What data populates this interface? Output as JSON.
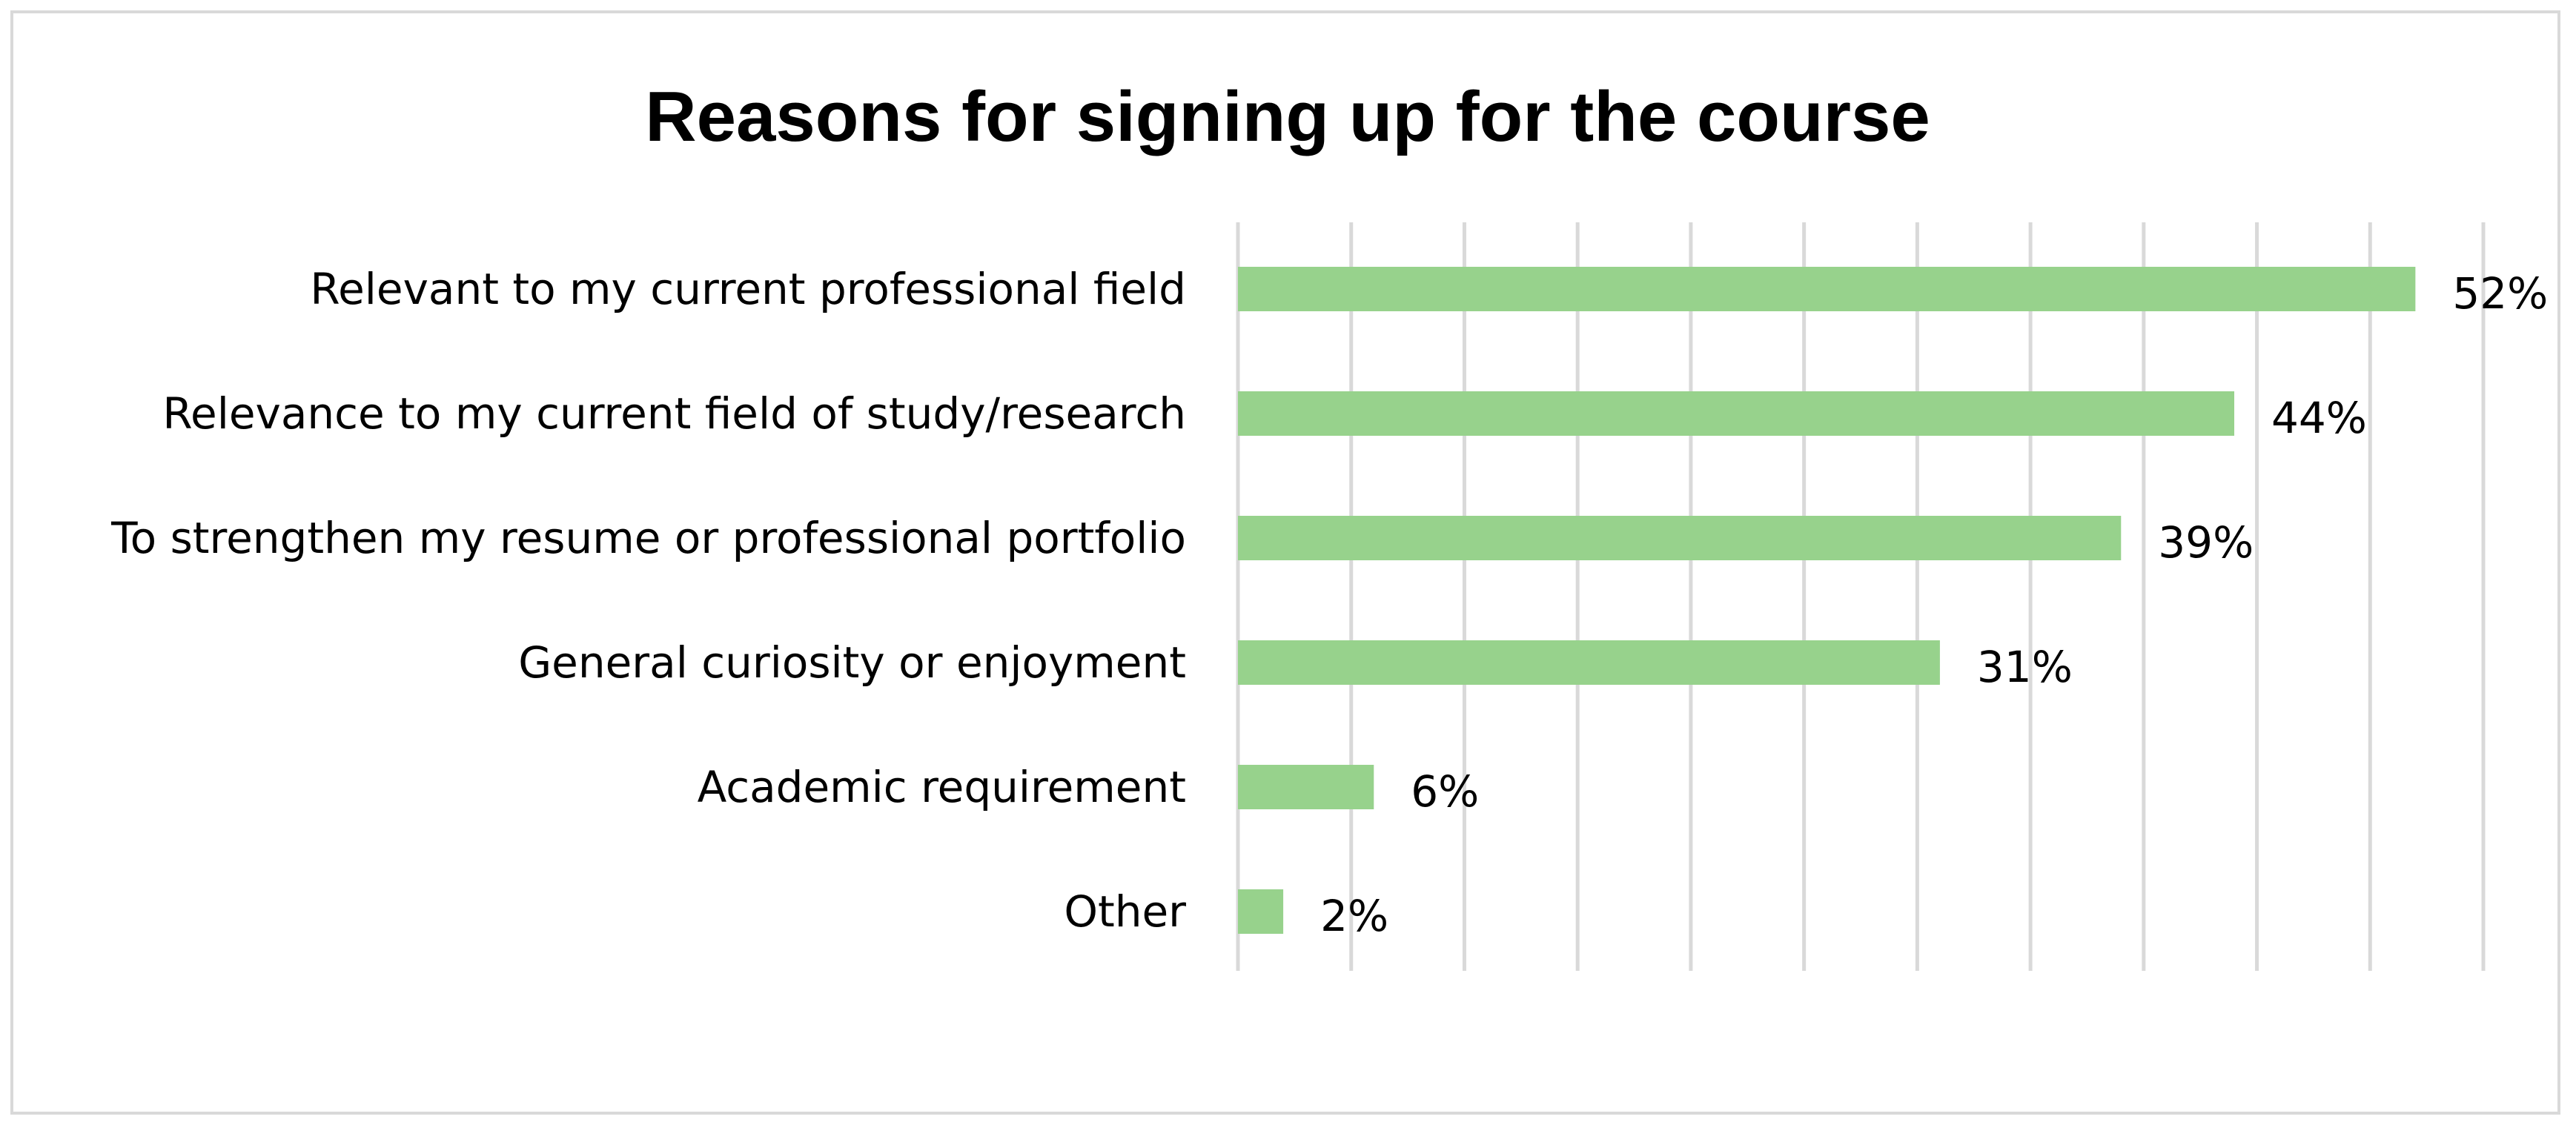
{
  "chart_data": {
    "type": "bar",
    "orientation": "horizontal",
    "title": "Reasons for signing up for the course",
    "categories": [
      "Relevant to my current professional field",
      "Relevance to my current field of study/research",
      "To strengthen my resume or professional portfolio",
      "General curiosity or enjoyment",
      "Academic requirement",
      "Other"
    ],
    "values": [
      52,
      44,
      39,
      31,
      6,
      2
    ],
    "value_labels": [
      "52%",
      "44%",
      "39%",
      "31%",
      "6%",
      "2%"
    ],
    "xlim": [
      0,
      55
    ],
    "x_grid_step": 5,
    "grid": true,
    "legend": "none",
    "colors": {
      "bar": "#97d28c",
      "grid": "#d9d9d9",
      "text": "#000000",
      "frame": "#d9d9d9"
    }
  }
}
